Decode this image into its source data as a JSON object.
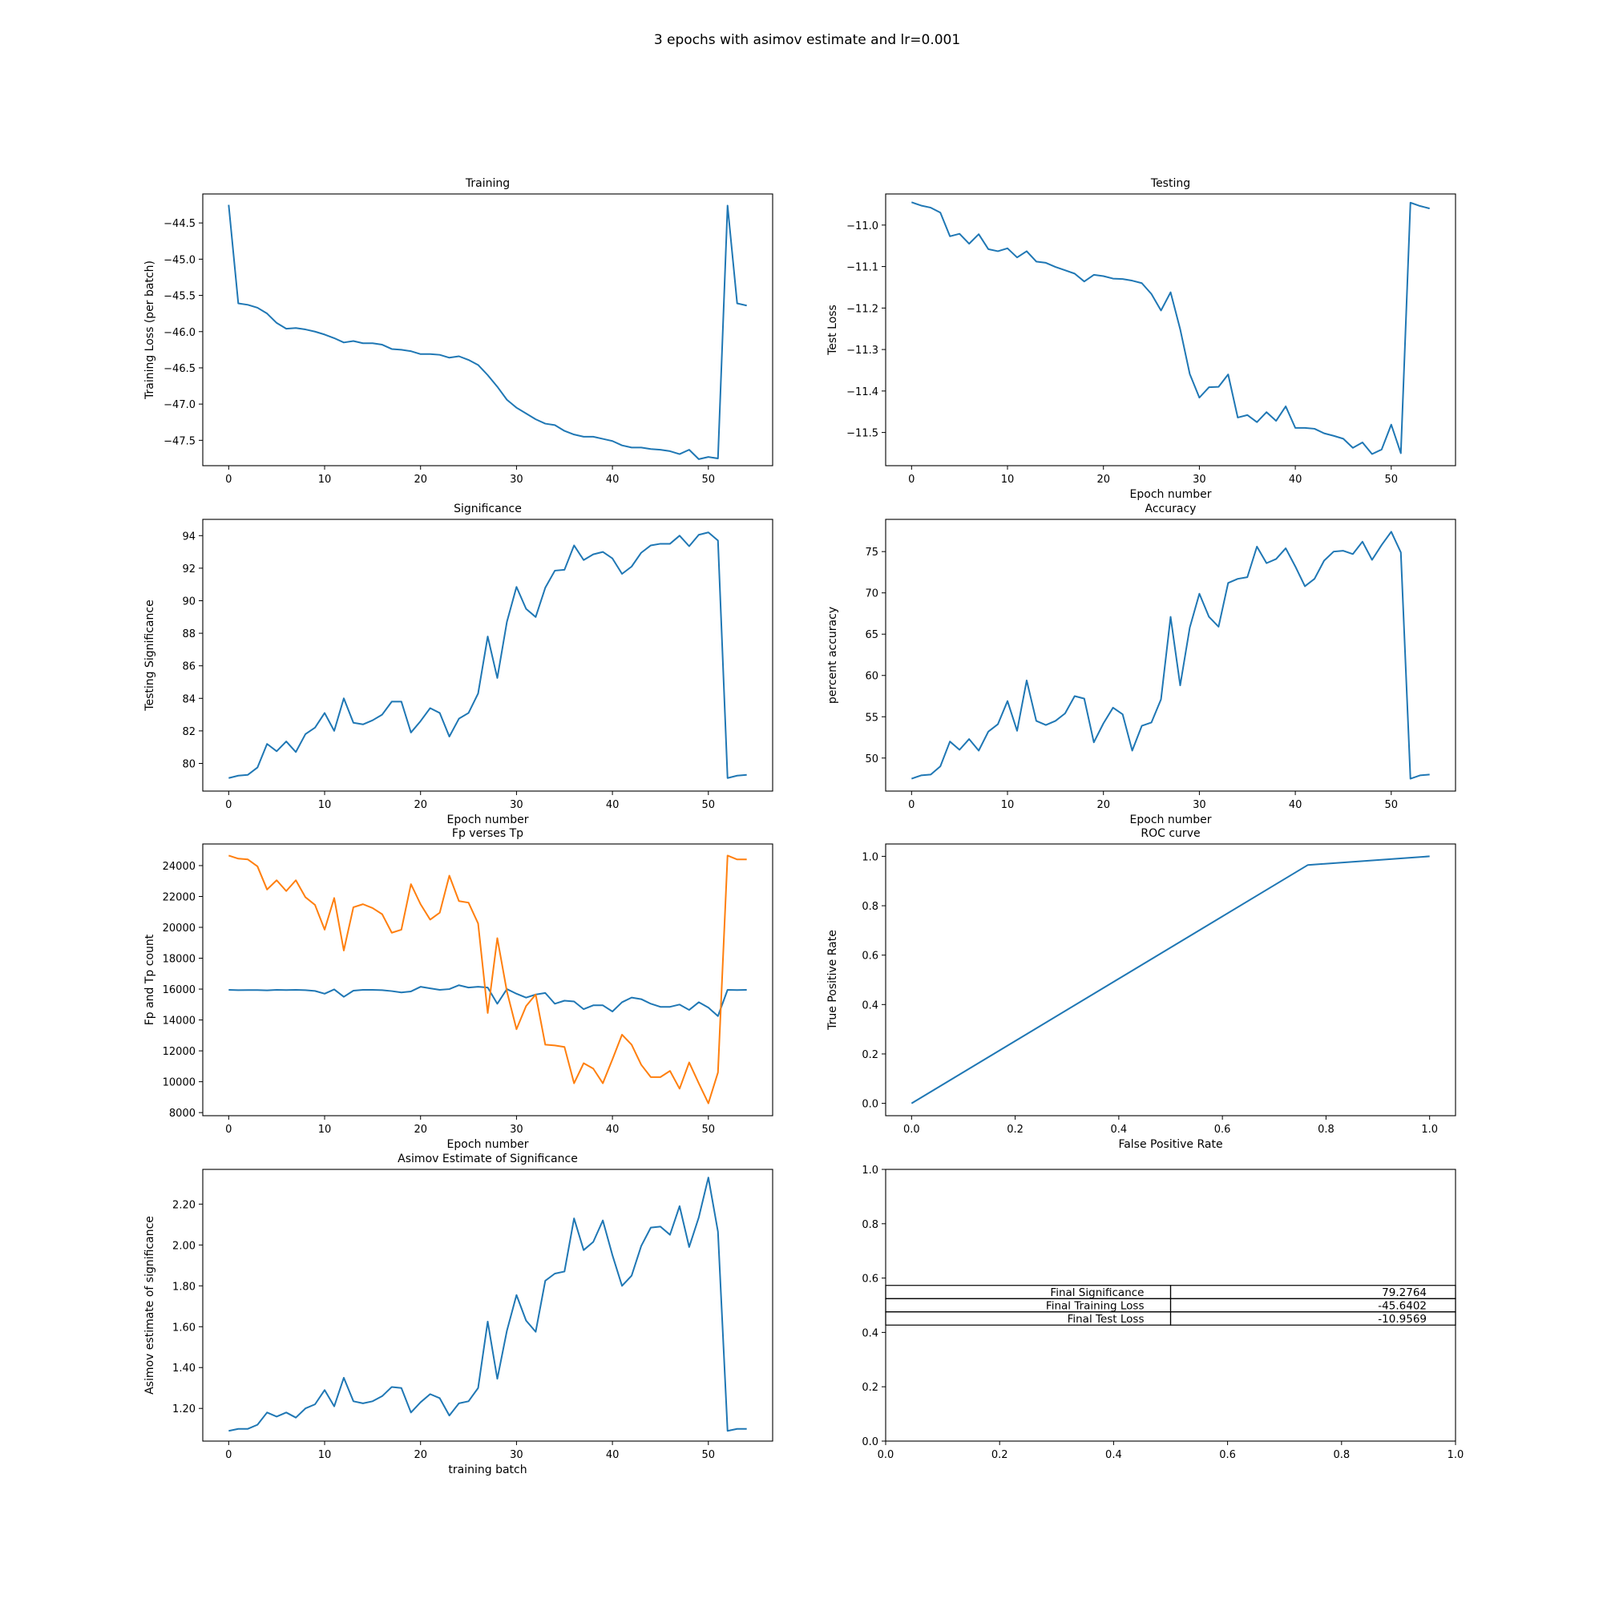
{
  "figure_title": "3 epochs with asimov estimate and lr=0.001",
  "colors": {
    "blue": "#1f77b4",
    "orange": "#ff7f0e"
  },
  "chart_data": [
    {
      "id": "training",
      "type": "line",
      "title": "Training",
      "xlabel": "",
      "ylabel": "Training Loss (per batch)",
      "xlim": [
        -2.7,
        56.7
      ],
      "ylim": [
        -47.85,
        -44.1
      ],
      "xticks": [
        0,
        10,
        20,
        30,
        40,
        50
      ],
      "yticks": [
        -47.5,
        -47.0,
        -46.5,
        -46.0,
        -45.5,
        -45.0,
        -44.5
      ],
      "ytick_labels": [
        "−47.5",
        "−47.0",
        "−46.5",
        "−46.0",
        "−45.5",
        "−45.0",
        "−44.5"
      ],
      "grid": false,
      "series": [
        {
          "color": "#1f77b4",
          "values": [
            -44.25,
            -45.61,
            -45.63,
            -45.67,
            -45.75,
            -45.88,
            -45.96,
            -45.95,
            -45.97,
            -46.0,
            -46.04,
            -46.09,
            -46.15,
            -46.13,
            -46.16,
            -46.16,
            -46.18,
            -46.24,
            -46.25,
            -46.27,
            -46.31,
            -46.31,
            -46.32,
            -46.36,
            -46.34,
            -46.39,
            -46.46,
            -46.6,
            -46.76,
            -46.94,
            -47.05,
            -47.13,
            -47.21,
            -47.27,
            -47.29,
            -47.37,
            -47.42,
            -47.45,
            -47.45,
            -47.48,
            -47.51,
            -47.57,
            -47.6,
            -47.6,
            -47.62,
            -47.63,
            -47.65,
            -47.69,
            -47.63,
            -47.76,
            -47.73,
            -47.75,
            -44.26,
            -45.61,
            -45.64
          ]
        }
      ]
    },
    {
      "id": "testing",
      "type": "line",
      "title": "Testing",
      "xlabel": "Epoch number",
      "ylabel": "Test Loss",
      "xlim": [
        -2.7,
        56.7
      ],
      "ylim": [
        -11.58,
        -10.925
      ],
      "xticks": [
        0,
        10,
        20,
        30,
        40,
        50
      ],
      "yticks": [
        -11.5,
        -11.4,
        -11.3,
        -11.2,
        -11.1,
        -11.0
      ],
      "ytick_labels": [
        "−11.5",
        "−11.4",
        "−11.3",
        "−11.2",
        "−11.1",
        "−11.0"
      ],
      "grid": false,
      "series": [
        {
          "color": "#1f77b4",
          "values": [
            -10.945,
            -10.953,
            -10.958,
            -10.97,
            -11.027,
            -11.021,
            -11.045,
            -11.022,
            -11.058,
            -11.063,
            -11.056,
            -11.078,
            -11.063,
            -11.088,
            -11.091,
            -11.101,
            -11.109,
            -11.117,
            -11.136,
            -11.12,
            -11.123,
            -11.129,
            -11.13,
            -11.134,
            -11.14,
            -11.166,
            -11.206,
            -11.162,
            -11.251,
            -11.359,
            -11.416,
            -11.391,
            -11.39,
            -11.36,
            -11.464,
            -11.458,
            -11.475,
            -11.451,
            -11.472,
            -11.437,
            -11.489,
            -11.489,
            -11.491,
            -11.502,
            -11.508,
            -11.515,
            -11.537,
            -11.524,
            -11.552,
            -11.541,
            -11.481,
            -11.55,
            -10.946,
            -10.954,
            -10.96
          ]
        }
      ]
    },
    {
      "id": "significance",
      "type": "line",
      "title": "Significance",
      "xlabel": "Epoch number",
      "ylabel": "Testing Significance",
      "xlim": [
        -2.7,
        56.7
      ],
      "ylim": [
        78.3,
        95.0
      ],
      "xticks": [
        0,
        10,
        20,
        30,
        40,
        50
      ],
      "yticks": [
        80,
        82,
        84,
        86,
        88,
        90,
        92,
        94
      ],
      "grid": false,
      "series": [
        {
          "color": "#1f77b4",
          "values": [
            79.1,
            79.25,
            79.3,
            79.75,
            81.2,
            80.75,
            81.35,
            80.7,
            81.8,
            82.2,
            83.1,
            82.0,
            84.0,
            82.5,
            82.4,
            82.65,
            83.0,
            83.8,
            83.8,
            81.9,
            82.6,
            83.4,
            83.1,
            81.65,
            82.75,
            83.1,
            84.3,
            87.8,
            85.25,
            88.7,
            90.85,
            89.5,
            89.0,
            90.8,
            91.85,
            91.9,
            93.4,
            92.5,
            92.85,
            93.0,
            92.6,
            91.65,
            92.1,
            92.95,
            93.4,
            93.5,
            93.5,
            94.0,
            93.35,
            94.05,
            94.2,
            93.7,
            79.1,
            79.25,
            79.3
          ]
        }
      ]
    },
    {
      "id": "accuracy",
      "type": "line",
      "title": "Accuracy",
      "xlabel": "Epoch number",
      "ylabel": "percent accuracy",
      "xlim": [
        -2.7,
        56.7
      ],
      "ylim": [
        46.0,
        78.9
      ],
      "xticks": [
        0,
        10,
        20,
        30,
        40,
        50
      ],
      "yticks": [
        50,
        55,
        60,
        65,
        70,
        75
      ],
      "grid": false,
      "series": [
        {
          "color": "#1f77b4",
          "values": [
            47.5,
            47.9,
            48.0,
            49.0,
            52.0,
            51.0,
            52.3,
            50.9,
            53.2,
            54.1,
            56.9,
            53.3,
            59.4,
            54.5,
            54.0,
            54.5,
            55.4,
            57.5,
            57.2,
            51.9,
            54.2,
            56.1,
            55.3,
            50.9,
            53.9,
            54.3,
            57.1,
            67.1,
            58.8,
            65.8,
            69.9,
            67.1,
            65.9,
            71.2,
            71.7,
            71.9,
            75.6,
            73.6,
            74.1,
            75.4,
            73.2,
            70.8,
            71.7,
            73.9,
            75.0,
            75.1,
            74.7,
            76.2,
            74.0,
            75.8,
            77.4,
            74.9,
            47.5,
            47.9,
            48.0
          ]
        }
      ]
    },
    {
      "id": "fp_tp",
      "type": "line",
      "title": "Fp verses Tp",
      "xlabel": "Epoch number",
      "ylabel": "Fp and Tp count",
      "xlim": [
        -2.7,
        56.7
      ],
      "ylim": [
        7800,
        25400
      ],
      "xticks": [
        0,
        10,
        20,
        30,
        40,
        50
      ],
      "yticks": [
        8000,
        10000,
        12000,
        14000,
        16000,
        18000,
        20000,
        22000,
        24000
      ],
      "grid": false,
      "series": [
        {
          "color": "#1f77b4",
          "values": [
            15950,
            15930,
            15940,
            15935,
            15920,
            15950,
            15940,
            15950,
            15930,
            15880,
            15700,
            15980,
            15500,
            15900,
            15950,
            15950,
            15930,
            15870,
            15780,
            15850,
            16150,
            16050,
            15950,
            16000,
            16250,
            16100,
            16150,
            16100,
            15050,
            16000,
            15700,
            15450,
            15650,
            15750,
            15050,
            15250,
            15200,
            14700,
            14950,
            14950,
            14550,
            15150,
            15450,
            15350,
            15050,
            14850,
            14850,
            15000,
            14650,
            15150,
            14800,
            14250,
            15950,
            15940,
            15950
          ]
        },
        {
          "color": "#ff7f0e",
          "values": [
            24650,
            24450,
            24400,
            23950,
            22450,
            23050,
            22350,
            23050,
            21950,
            21450,
            19850,
            21900,
            18500,
            21300,
            21500,
            21250,
            20850,
            19650,
            19850,
            22800,
            21500,
            20500,
            20950,
            23350,
            21700,
            21600,
            20250,
            14450,
            19300,
            15850,
            13400,
            14900,
            15650,
            12400,
            12350,
            12250,
            9900,
            11200,
            10850,
            9900,
            11450,
            13050,
            12400,
            11100,
            10300,
            10300,
            10700,
            9550,
            11250,
            9900,
            8600,
            10600,
            24650,
            24400,
            24400
          ]
        }
      ]
    },
    {
      "id": "roc",
      "type": "line",
      "title": "ROC curve",
      "xlabel": "False Positive Rate",
      "ylabel": "True Positive Rate",
      "xlim": [
        -0.05,
        1.05
      ],
      "ylim": [
        -0.05,
        1.05
      ],
      "xticks": [
        0.0,
        0.2,
        0.4,
        0.6,
        0.8,
        1.0
      ],
      "yticks": [
        0.0,
        0.2,
        0.4,
        0.6,
        0.8,
        1.0
      ],
      "grid": false,
      "series": [
        {
          "color": "#1f77b4",
          "x": [
            0.0,
            0.765,
            1.0
          ],
          "values": [
            0.0,
            0.965,
            1.0
          ]
        }
      ]
    },
    {
      "id": "asimov",
      "type": "line",
      "title": "Asimov Estimate of Significance",
      "xlabel": "training batch",
      "ylabel": "Asimov estimate of significance",
      "xlim": [
        -2.7,
        56.7
      ],
      "ylim": [
        1.04,
        2.37
      ],
      "xticks": [
        0,
        10,
        20,
        30,
        40,
        50
      ],
      "yticks": [
        1.2,
        1.4,
        1.6,
        1.8,
        2.0,
        2.2
      ],
      "grid": false,
      "series": [
        {
          "color": "#1f77b4",
          "values": [
            1.09,
            1.1,
            1.1,
            1.12,
            1.18,
            1.16,
            1.18,
            1.155,
            1.2,
            1.22,
            1.29,
            1.21,
            1.35,
            1.235,
            1.225,
            1.235,
            1.26,
            1.305,
            1.3,
            1.18,
            1.23,
            1.27,
            1.25,
            1.165,
            1.225,
            1.235,
            1.3,
            1.625,
            1.345,
            1.58,
            1.755,
            1.63,
            1.575,
            1.825,
            1.86,
            1.87,
            2.13,
            1.975,
            2.015,
            2.12,
            1.95,
            1.8,
            1.85,
            1.995,
            2.085,
            2.09,
            2.05,
            2.19,
            1.99,
            2.135,
            2.33,
            2.065,
            1.09,
            1.1,
            1.1
          ]
        }
      ]
    },
    {
      "id": "summary",
      "type": "table",
      "title": "",
      "xlim": [
        0.0,
        1.0
      ],
      "ylim": [
        0.0,
        1.0
      ],
      "xticks": [
        0.0,
        0.2,
        0.4,
        0.6,
        0.8,
        1.0
      ],
      "yticks": [
        0.0,
        0.2,
        0.4,
        0.6,
        0.8,
        1.0
      ],
      "rows": [
        {
          "label": "Final Significance",
          "value": "79.2764"
        },
        {
          "label": "Final Training Loss",
          "value": "-45.6402"
        },
        {
          "label": "Final Test Loss",
          "value": "-10.9569"
        }
      ]
    }
  ]
}
